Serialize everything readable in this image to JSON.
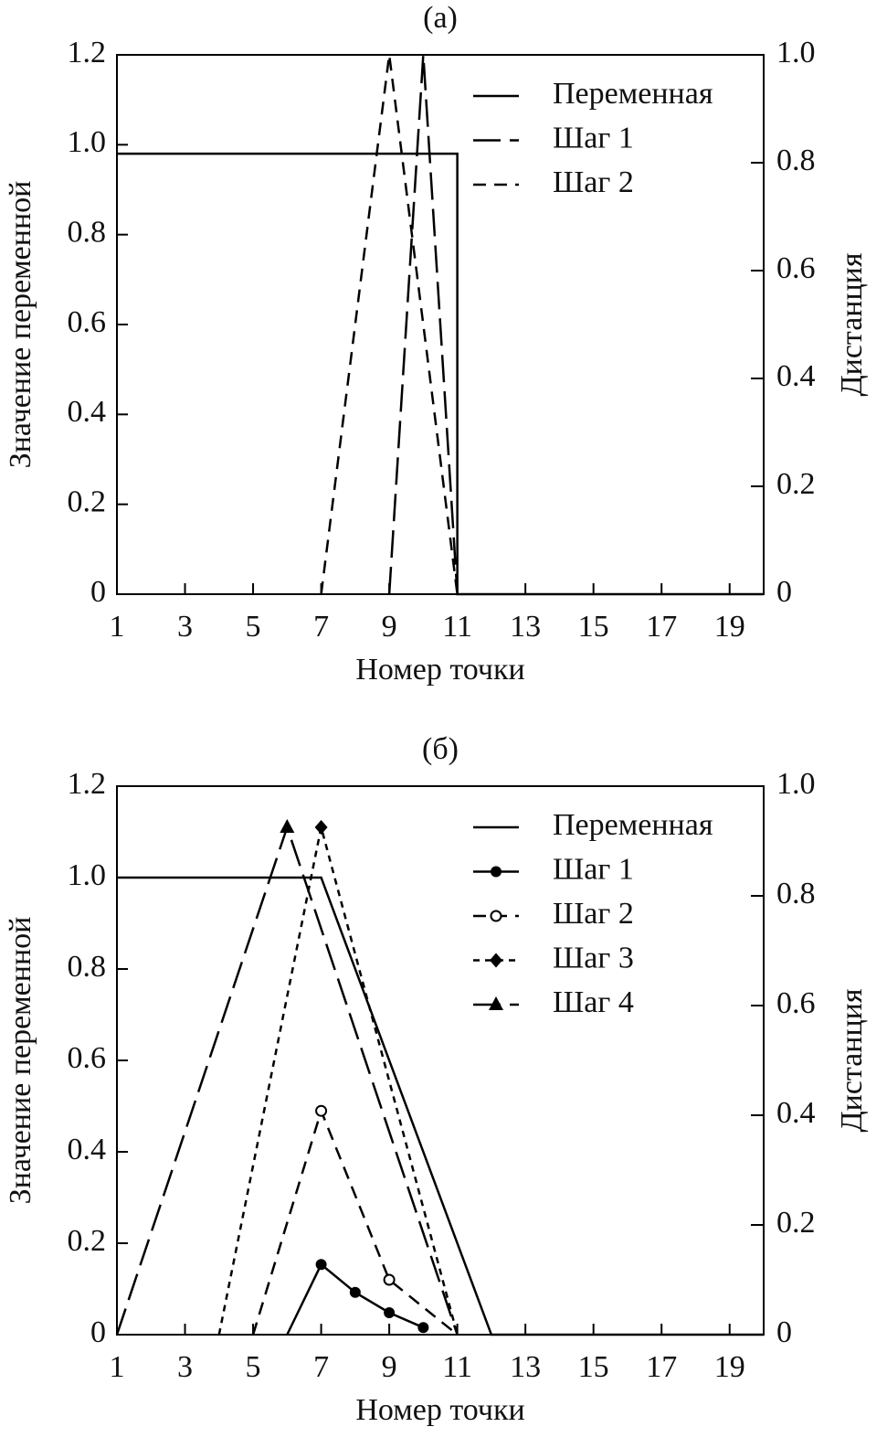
{
  "chart_data": [
    {
      "type": "line",
      "title": "(a)",
      "xlabel": "Номер точки",
      "ylabel": "Значение переменной",
      "y2label": "Дистанция",
      "xlim": [
        1,
        20
      ],
      "xticks": [
        1,
        3,
        5,
        7,
        9,
        11,
        13,
        15,
        17,
        19
      ],
      "ylim": [
        0,
        1.2
      ],
      "yticks": [
        0,
        0.2,
        0.4,
        0.6,
        0.8,
        {
          "value": 1,
          "label": "1.0"
        },
        1.2
      ],
      "y2lim": [
        0,
        1
      ],
      "y2ticks": [
        0,
        0.2,
        0.4,
        0.6,
        0.8,
        {
          "value": 1,
          "label": "1.0"
        }
      ],
      "legend": "upper right",
      "series": [
        {
          "name": "Переменная",
          "color": "#000000",
          "linestyle": "solid",
          "x": [
            1,
            11,
            11,
            20
          ],
          "values": [
            0.98,
            0.98,
            0,
            0
          ]
        },
        {
          "name": "Шаг 1",
          "color": "#000000",
          "linestyle": "long-dash",
          "axis": "y2",
          "x": [
            9,
            10,
            11
          ],
          "values": [
            0,
            1,
            0
          ]
        },
        {
          "name": "Шаг 2",
          "color": "#000000",
          "linestyle": "dash",
          "axis": "y2",
          "x": [
            7,
            9,
            11
          ],
          "values": [
            0,
            1,
            0
          ]
        }
      ]
    },
    {
      "type": "line",
      "title": "(б)",
      "xlabel": "Номер точки",
      "ylabel": "Значение переменной",
      "y2label": "Дистанция",
      "xlim": [
        1,
        20
      ],
      "xticks": [
        1,
        3,
        5,
        7,
        9,
        11,
        13,
        15,
        17,
        19
      ],
      "ylim": [
        0,
        1.2
      ],
      "yticks": [
        0,
        0.2,
        0.4,
        0.6,
        0.8,
        {
          "value": 1,
          "label": "1.0"
        },
        1.2
      ],
      "y2lim": [
        0,
        1
      ],
      "y2ticks": [
        0,
        0.2,
        0.4,
        0.6,
        0.8,
        {
          "value": 1,
          "label": "1.0"
        }
      ],
      "legend": "upper right",
      "series": [
        {
          "name": "Переменная",
          "color": "#000000",
          "linestyle": "solid",
          "x": [
            1,
            7,
            12,
            20
          ],
          "values": [
            1,
            1,
            0,
            0
          ]
        },
        {
          "name": "Шаг 1",
          "color": "#000000",
          "linestyle": "solid",
          "marker": "circle",
          "axis": "y2",
          "x": [
            6,
            7,
            8,
            9,
            10
          ],
          "values": [
            0,
            0.128,
            0.077,
            0.04,
            0.013
          ]
        },
        {
          "name": "Шаг 2",
          "color": "#000000",
          "linestyle": "dash",
          "marker": "open-circle",
          "axis": "y2",
          "x": [
            5,
            7,
            9,
            11
          ],
          "values": [
            0,
            0.408,
            0.1,
            0
          ]
        },
        {
          "name": "Шаг 3",
          "color": "#000000",
          "linestyle": "short-dash",
          "marker": "diamond",
          "axis": "y2",
          "x": [
            4,
            7,
            11
          ],
          "values": [
            0,
            0.925,
            0
          ]
        },
        {
          "name": "Шаг 4",
          "color": "#000000",
          "linestyle": "long-dash",
          "marker": "triangle",
          "axis": "y2",
          "x": [
            1,
            6,
            11
          ],
          "values": [
            0,
            0.925,
            0
          ]
        }
      ]
    }
  ]
}
